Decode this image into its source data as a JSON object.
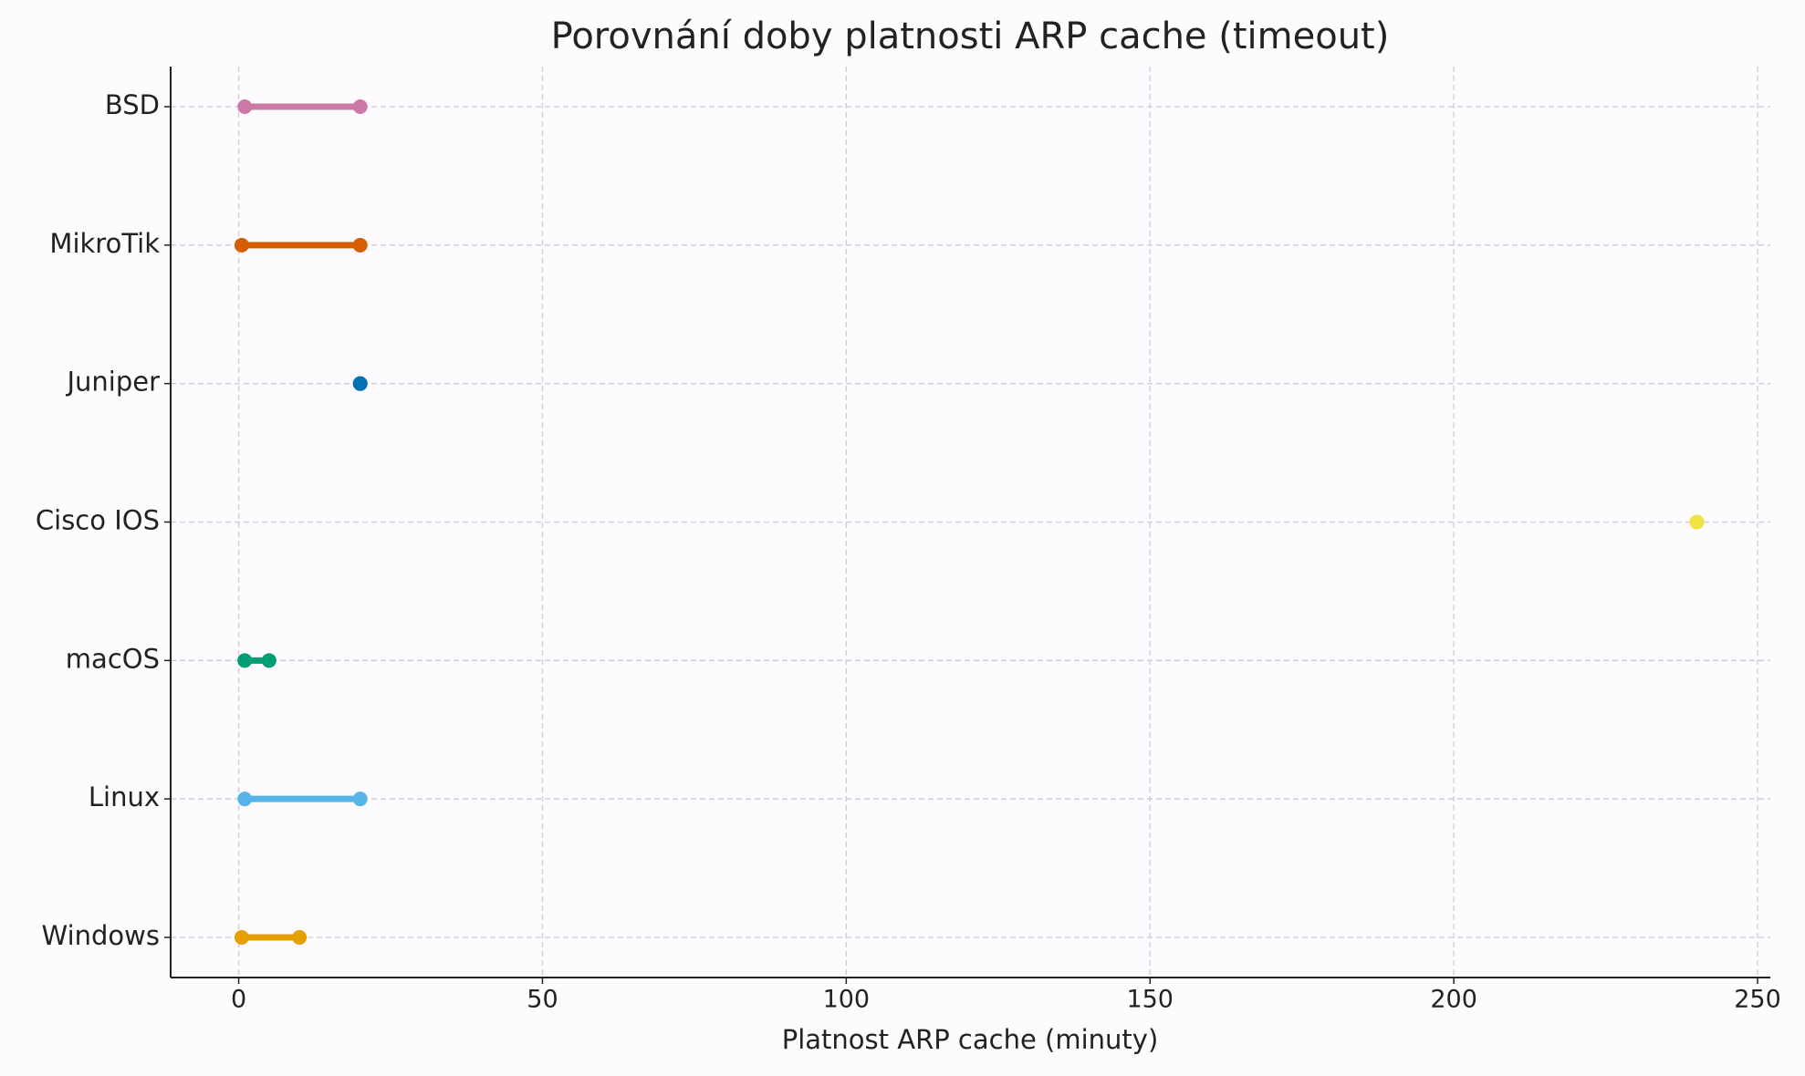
{
  "chart_data": {
    "type": "dumbbell",
    "title": "Porovnání doby platnosti ARP cache (timeout)",
    "x_label": "Platnost ARP cache (minuty)",
    "categories": [
      "Windows",
      "Linux",
      "macOS",
      "Cisco IOS",
      "Juniper",
      "MikroTik",
      "BSD"
    ],
    "min": [
      0.5,
      1,
      1,
      240,
      20,
      0.5,
      1
    ],
    "max": [
      10,
      20,
      5,
      240,
      20,
      20,
      20
    ],
    "colors": [
      "#e69f00",
      "#56b4e9",
      "#009e73",
      "#f0e442",
      "#0072b2",
      "#d55e00",
      "#cc79a7"
    ],
    "xlim": [
      -11.2,
      252.1
    ],
    "xticks": [
      0,
      50,
      100,
      150,
      200,
      250
    ],
    "grid": true
  }
}
